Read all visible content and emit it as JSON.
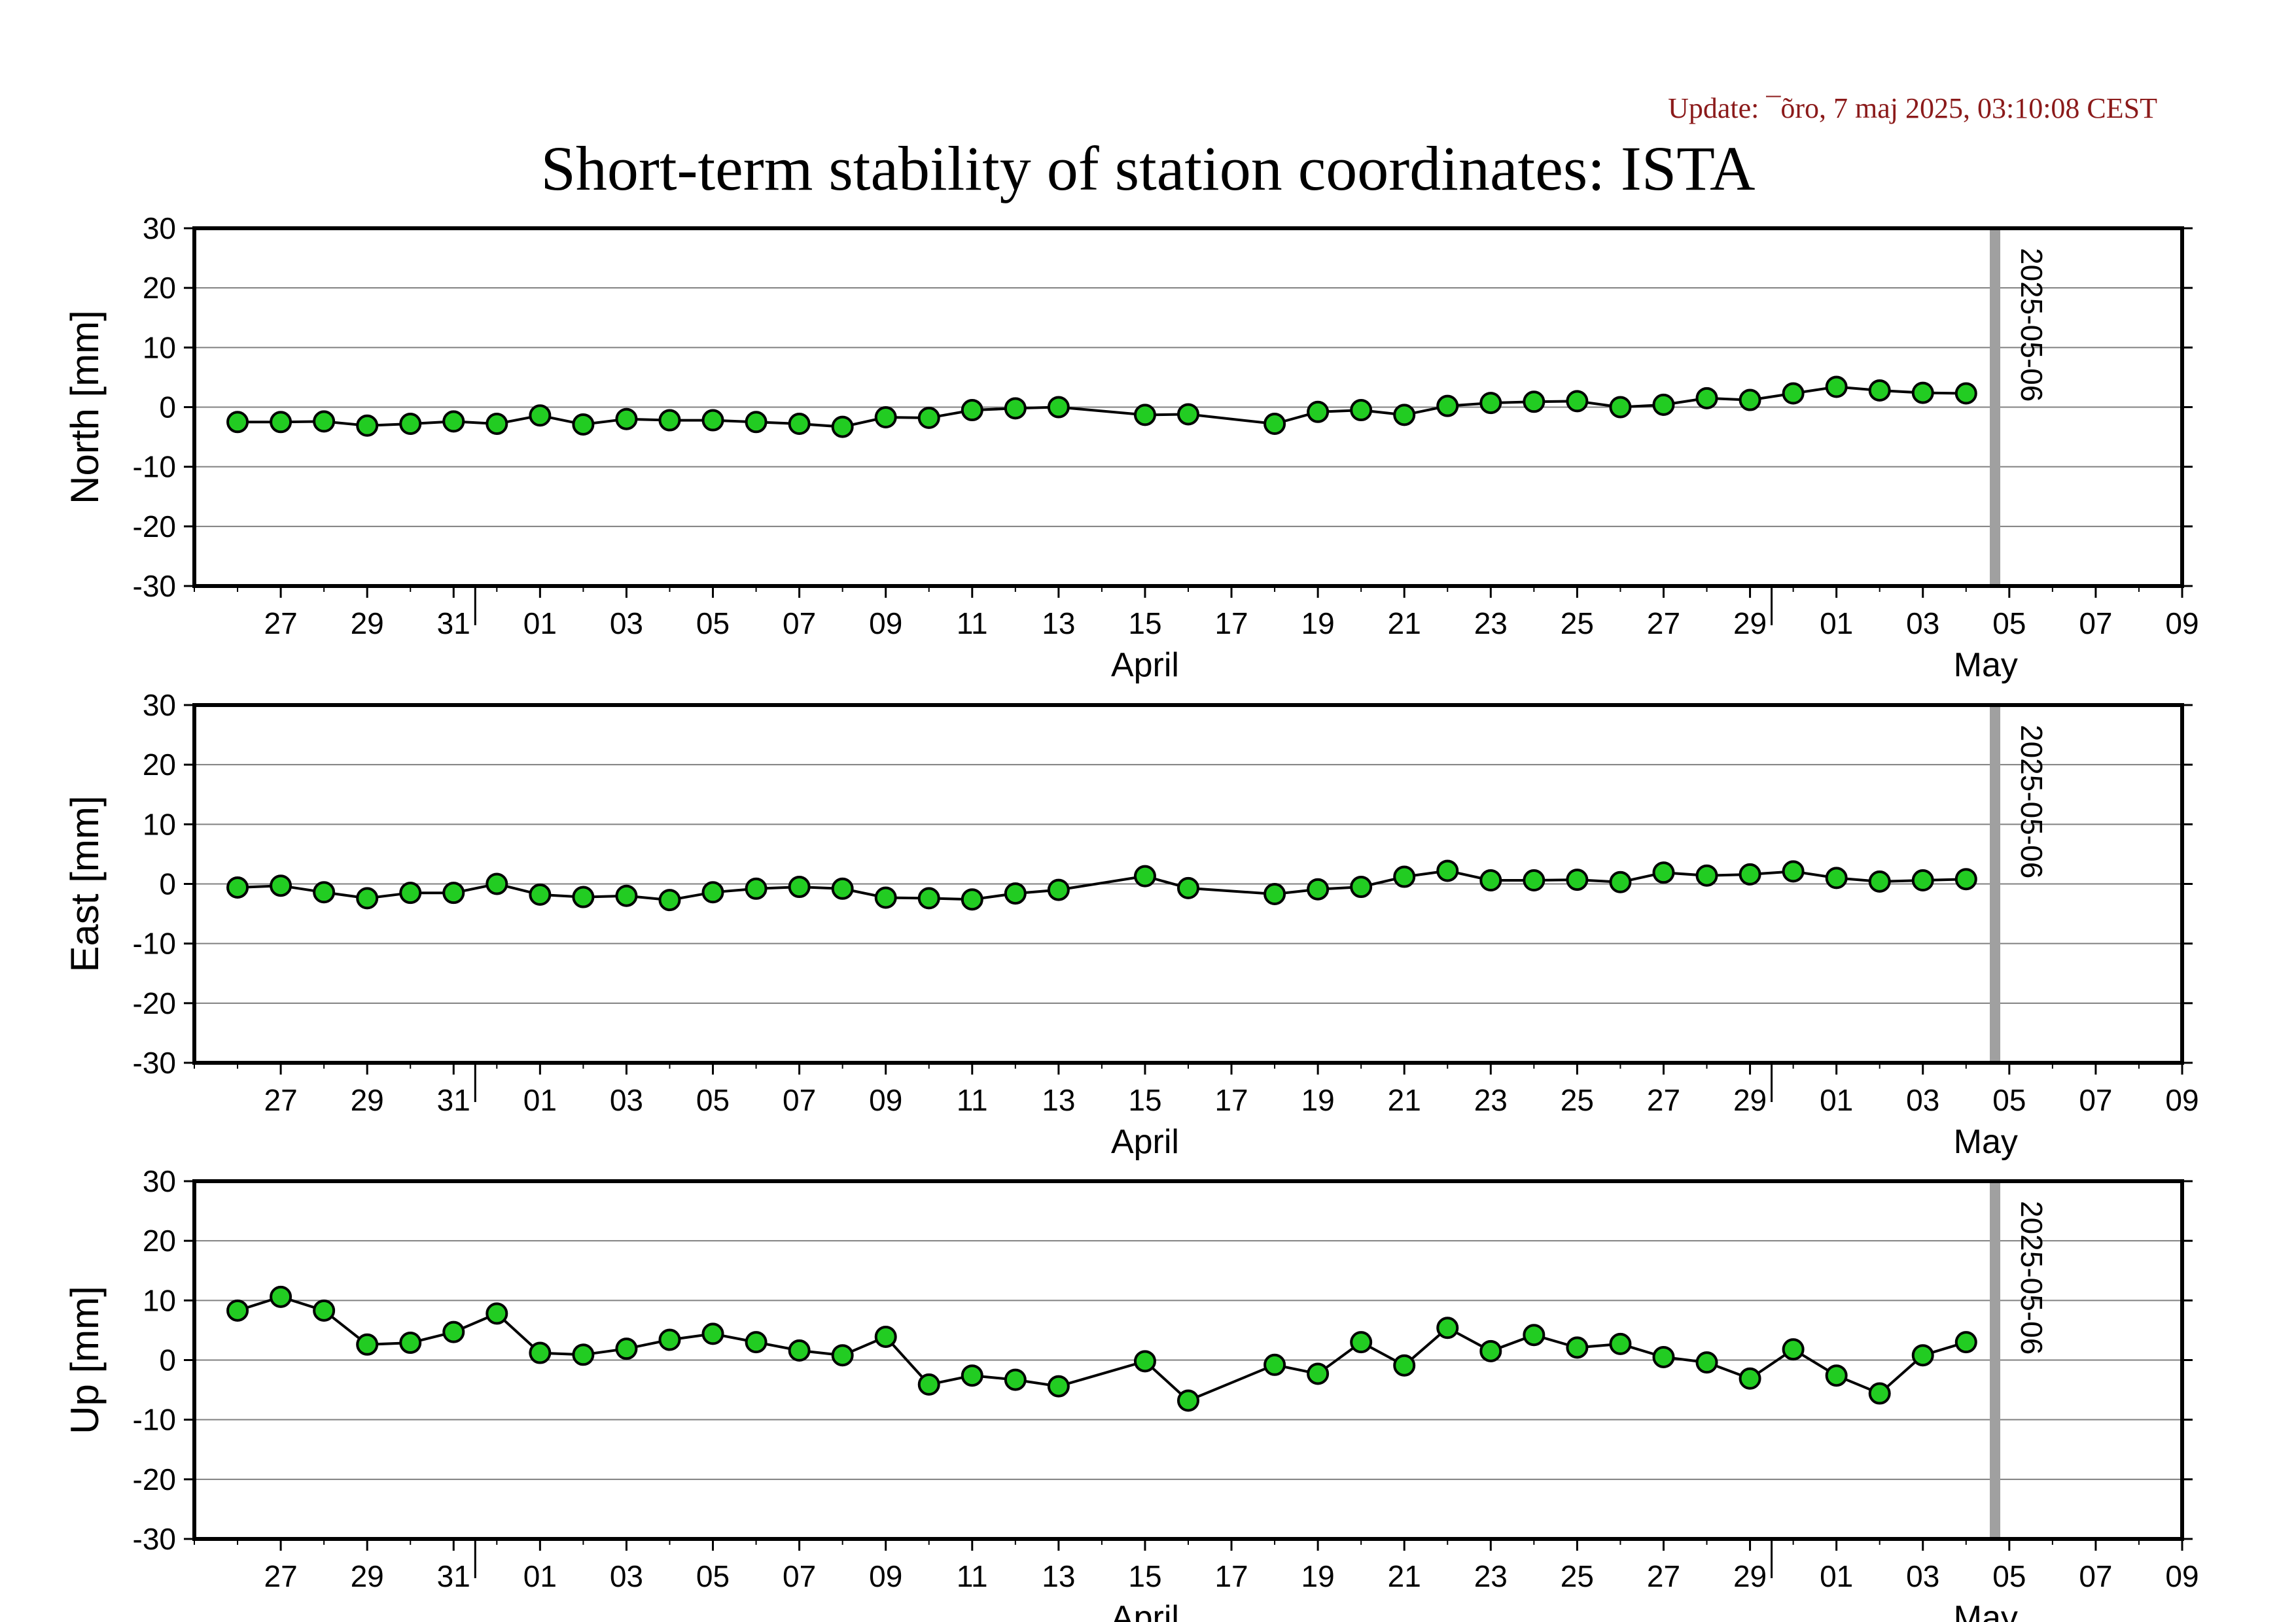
{
  "update_text": "Update: ¯õro, 7 maj 2025, 03:10:08 CEST",
  "title": "Short-term stability of station coordinates: ISTA",
  "colors": {
    "marker_fill": "#22cc22",
    "marker_stroke": "#000000",
    "line": "#000000",
    "today_bar": "#a0a0a0",
    "grid": "#808080",
    "update_text": "#8b1a1a"
  },
  "chart_data": [
    {
      "type": "line",
      "ylabel": "North [mm]",
      "ylim": [
        -30,
        30
      ],
      "yticks": [
        30,
        20,
        10,
        0,
        -10,
        -20,
        -30
      ],
      "grid": "horizontal",
      "xlim": [
        "2025-03-25",
        "2025-05-10"
      ],
      "x_tick_labels": [
        "27",
        "29",
        "31",
        "01",
        "03",
        "05",
        "07",
        "09",
        "11",
        "13",
        "15",
        "17",
        "19",
        "21",
        "23",
        "25",
        "27",
        "29",
        "01",
        "03",
        "05",
        "07",
        "09"
      ],
      "month_labels": [
        "April",
        "May"
      ],
      "marker_label": "2025-05-06",
      "x": [
        "2025-03-26",
        "2025-03-27",
        "2025-03-28",
        "2025-03-29",
        "2025-03-30",
        "2025-03-31",
        "2025-04-01",
        "2025-04-02",
        "2025-04-03",
        "2025-04-04",
        "2025-04-05",
        "2025-04-06",
        "2025-04-07",
        "2025-04-08",
        "2025-04-09",
        "2025-04-10",
        "2025-04-11",
        "2025-04-12",
        "2025-04-13",
        "2025-04-14",
        "2025-04-16",
        "2025-04-17",
        "2025-04-19",
        "2025-04-20",
        "2025-04-21",
        "2025-04-22",
        "2025-04-23",
        "2025-04-24",
        "2025-04-25",
        "2025-04-26",
        "2025-04-27",
        "2025-04-28",
        "2025-04-29",
        "2025-04-30",
        "2025-05-01",
        "2025-05-02",
        "2025-05-03",
        "2025-05-04",
        "2025-05-05"
      ],
      "y": [
        -2.5,
        -2.5,
        -2.4,
        -3.1,
        -2.8,
        -2.4,
        -2.8,
        -1.4,
        -2.9,
        -2.0,
        -2.2,
        -2.2,
        -2.5,
        -2.8,
        -3.3,
        -1.7,
        -1.8,
        -0.5,
        -0.2,
        0.0,
        -1.3,
        -1.2,
        -2.8,
        -0.8,
        -0.5,
        -1.3,
        0.2,
        0.7,
        0.9,
        1.0,
        0.0,
        0.4,
        1.5,
        1.2,
        2.3,
        3.4,
        2.8,
        2.4,
        2.3
      ]
    },
    {
      "type": "line",
      "ylabel": "East [mm]",
      "ylim": [
        -30,
        30
      ],
      "yticks": [
        30,
        20,
        10,
        0,
        -10,
        -20,
        -30
      ],
      "grid": "horizontal",
      "xlim": [
        "2025-03-25",
        "2025-05-10"
      ],
      "x_tick_labels": [
        "27",
        "29",
        "31",
        "01",
        "03",
        "05",
        "07",
        "09",
        "11",
        "13",
        "15",
        "17",
        "19",
        "21",
        "23",
        "25",
        "27",
        "29",
        "01",
        "03",
        "05",
        "07",
        "09"
      ],
      "month_labels": [
        "April",
        "May"
      ],
      "marker_label": "2025-05-06",
      "x": [
        "2025-03-26",
        "2025-03-27",
        "2025-03-28",
        "2025-03-29",
        "2025-03-30",
        "2025-03-31",
        "2025-04-01",
        "2025-04-02",
        "2025-04-03",
        "2025-04-04",
        "2025-04-05",
        "2025-04-06",
        "2025-04-07",
        "2025-04-08",
        "2025-04-09",
        "2025-04-10",
        "2025-04-11",
        "2025-04-12",
        "2025-04-13",
        "2025-04-14",
        "2025-04-16",
        "2025-04-17",
        "2025-04-19",
        "2025-04-20",
        "2025-04-21",
        "2025-04-22",
        "2025-04-23",
        "2025-04-24",
        "2025-04-25",
        "2025-04-26",
        "2025-04-27",
        "2025-04-28",
        "2025-04-29",
        "2025-04-30",
        "2025-05-01",
        "2025-05-02",
        "2025-05-03",
        "2025-05-04",
        "2025-05-05"
      ],
      "y": [
        -0.6,
        -0.3,
        -1.4,
        -2.4,
        -1.5,
        -1.5,
        0.0,
        -1.8,
        -2.2,
        -2.0,
        -2.7,
        -1.4,
        -0.8,
        -0.5,
        -0.8,
        -2.3,
        -2.4,
        -2.6,
        -1.6,
        -1.0,
        1.3,
        -0.7,
        -1.7,
        -0.9,
        -0.5,
        1.2,
        2.2,
        0.6,
        0.6,
        0.7,
        0.3,
        1.9,
        1.4,
        1.6,
        2.1,
        1.0,
        0.4,
        0.6,
        0.8
      ]
    },
    {
      "type": "line",
      "ylabel": "Up [mm]",
      "ylim": [
        -30,
        30
      ],
      "yticks": [
        30,
        20,
        10,
        0,
        -10,
        -20,
        -30
      ],
      "grid": "horizontal",
      "xlim": [
        "2025-03-25",
        "2025-05-10"
      ],
      "x_tick_labels": [
        "27",
        "29",
        "31",
        "01",
        "03",
        "05",
        "07",
        "09",
        "11",
        "13",
        "15",
        "17",
        "19",
        "21",
        "23",
        "25",
        "27",
        "29",
        "01",
        "03",
        "05",
        "07",
        "09"
      ],
      "month_labels": [
        "April",
        "May"
      ],
      "marker_label": "2025-05-06",
      "x": [
        "2025-03-26",
        "2025-03-27",
        "2025-03-28",
        "2025-03-29",
        "2025-03-30",
        "2025-03-31",
        "2025-04-01",
        "2025-04-02",
        "2025-04-03",
        "2025-04-04",
        "2025-04-05",
        "2025-04-06",
        "2025-04-07",
        "2025-04-08",
        "2025-04-09",
        "2025-04-10",
        "2025-04-11",
        "2025-04-12",
        "2025-04-13",
        "2025-04-14",
        "2025-04-16",
        "2025-04-17",
        "2025-04-19",
        "2025-04-20",
        "2025-04-21",
        "2025-04-22",
        "2025-04-23",
        "2025-04-24",
        "2025-04-25",
        "2025-04-26",
        "2025-04-27",
        "2025-04-28",
        "2025-04-29",
        "2025-04-30",
        "2025-05-01",
        "2025-05-02",
        "2025-05-03",
        "2025-05-04",
        "2025-05-05"
      ],
      "y": [
        8.3,
        10.6,
        8.3,
        2.6,
        2.9,
        4.7,
        7.8,
        1.2,
        0.9,
        1.9,
        3.4,
        4.4,
        3.0,
        1.6,
        0.8,
        3.9,
        -4.1,
        -2.6,
        -3.3,
        -4.4,
        -0.2,
        -6.8,
        -0.8,
        -2.3,
        3.0,
        -0.9,
        5.4,
        1.5,
        4.2,
        2.1,
        2.7,
        0.5,
        -0.4,
        -3.1,
        1.8,
        -2.6,
        -5.6,
        0.8,
        3.0
      ]
    }
  ]
}
